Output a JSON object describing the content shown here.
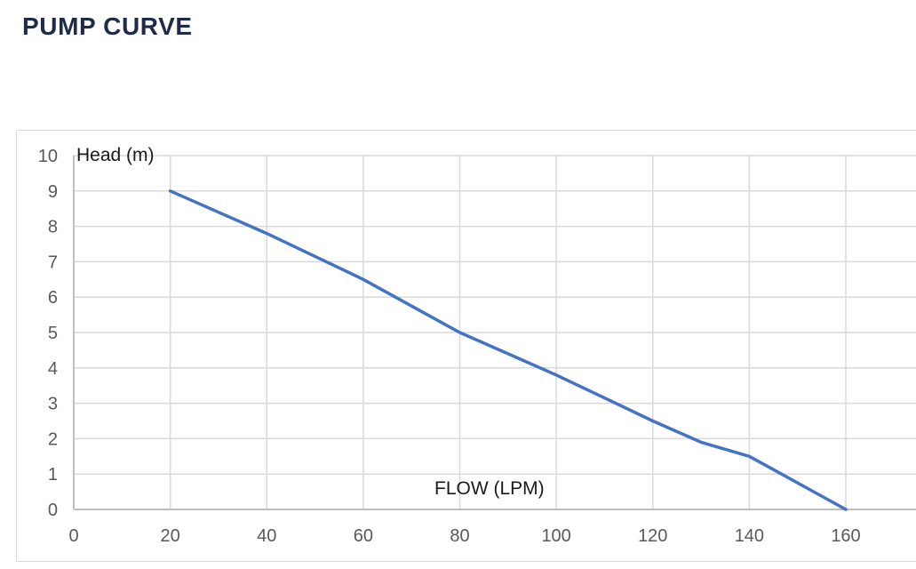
{
  "page": {
    "title": "PUMP CURVE"
  },
  "chart_data": {
    "type": "line",
    "title": "PUMP CURVE",
    "xlabel": "FLOW (LPM)",
    "ylabel": "Head (m)",
    "x": [
      20,
      30,
      40,
      50,
      60,
      70,
      80,
      90,
      100,
      110,
      120,
      130,
      140,
      150,
      160
    ],
    "series": [
      {
        "name": "Head (m)",
        "values": [
          9.0,
          8.4,
          7.8,
          7.15,
          6.5,
          5.75,
          5.0,
          4.4,
          3.8,
          3.15,
          2.5,
          1.9,
          1.5,
          0.75,
          0.0
        ]
      }
    ],
    "xlim": [
      0,
      160
    ],
    "ylim": [
      0,
      10
    ],
    "x_ticks": [
      0,
      20,
      40,
      60,
      80,
      100,
      120,
      140,
      160
    ],
    "y_ticks": [
      0,
      1,
      2,
      3,
      4,
      5,
      6,
      7,
      8,
      9,
      10
    ],
    "grid": true,
    "legend": "none",
    "line_color": "#4472C4"
  },
  "colors": {
    "title_text": "#1F2C49",
    "tick_text": "#595959",
    "axis_label_text": "#1A1A1A",
    "gridline": "#D9D9D9",
    "axis_line": "#BFBFBF",
    "curve": "#4472C4",
    "frame_border": "#D9D9D9",
    "background": "#FFFFFF"
  }
}
